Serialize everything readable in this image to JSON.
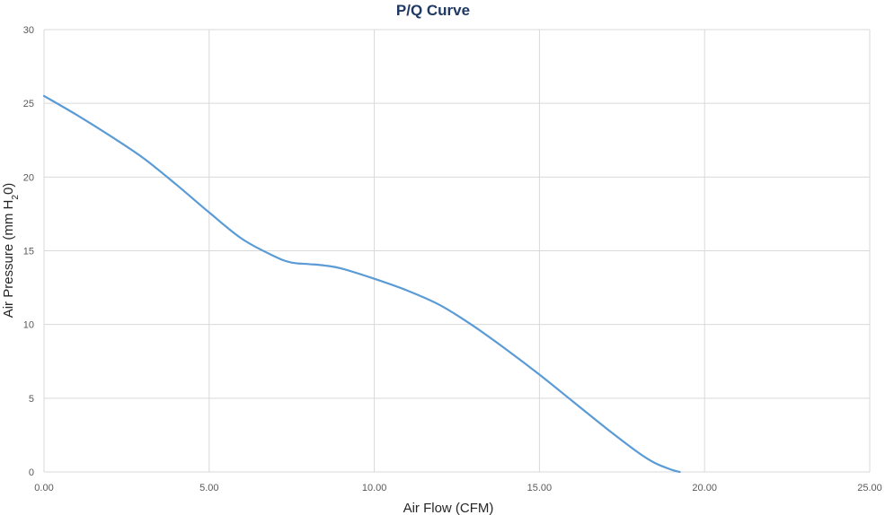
{
  "chart_data": {
    "type": "line",
    "title": "P/Q Curve",
    "xlabel": "Air Flow (CFM)",
    "ylabel_main": "Air Pressure (mm H",
    "ylabel_sub": "2",
    "ylabel_tail": "0)",
    "xlim": [
      0,
      25
    ],
    "ylim": [
      0,
      30
    ],
    "x_ticks": [
      "0.00",
      "5.00",
      "10.00",
      "15.00",
      "20.00",
      "25.00"
    ],
    "y_ticks": [
      "0",
      "5",
      "10",
      "15",
      "20",
      "25",
      "30"
    ],
    "grid": true,
    "line_color": "#5b9bd5",
    "series": [
      {
        "x": [
          0,
          1,
          2,
          3,
          4,
          5,
          6,
          7,
          7.5,
          8,
          8.5,
          9,
          10,
          11,
          12,
          13,
          14,
          15,
          16,
          17,
          18,
          18.5,
          19,
          19.25
        ],
        "y": [
          25.5,
          24.2,
          22.8,
          21.3,
          19.5,
          17.6,
          15.8,
          14.6,
          14.2,
          14.1,
          14.0,
          13.8,
          13.1,
          12.3,
          11.3,
          9.9,
          8.3,
          6.6,
          4.8,
          3.0,
          1.3,
          0.6,
          0.15,
          0
        ]
      }
    ]
  }
}
